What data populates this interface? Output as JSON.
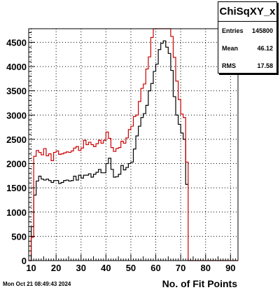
{
  "timestamp": "Mon Oct 21 08:49:43 2024",
  "stats": {
    "title": "ChiSqXY_x",
    "rows": [
      {
        "label": "Entries",
        "value": "145800"
      },
      {
        "label": "Mean",
        "value": "46.12"
      },
      {
        "label": "RMS",
        "value": "17.58"
      }
    ]
  },
  "chart_data": {
    "type": "histogram",
    "xlabel": "No. of Fit Points",
    "ylabel": "",
    "xlim": [
      9,
      93
    ],
    "ylim": [
      0,
      4780
    ],
    "xticks": [
      10,
      20,
      30,
      40,
      50,
      60,
      70,
      80,
      90
    ],
    "yticks": [
      0,
      500,
      1000,
      1500,
      2000,
      2500,
      3000,
      3500,
      4000,
      4500
    ],
    "grid": true,
    "bin_width": 1,
    "series": [
      {
        "color": "#000000",
        "bin_low_edges": [
          9,
          10,
          11,
          12,
          13,
          14,
          15,
          16,
          17,
          18,
          19,
          20,
          21,
          22,
          23,
          24,
          25,
          26,
          27,
          28,
          29,
          30,
          31,
          32,
          33,
          34,
          35,
          36,
          37,
          38,
          39,
          40,
          41,
          42,
          43,
          44,
          45,
          46,
          47,
          48,
          49,
          50,
          51,
          52,
          53,
          54,
          55,
          56,
          57,
          58,
          59,
          60,
          61,
          62,
          63,
          64,
          65,
          66,
          67,
          68,
          69,
          70,
          71,
          72
        ],
        "values": [
          0,
          700,
          1350,
          1640,
          1740,
          1680,
          1660,
          1680,
          1650,
          1610,
          1650,
          1650,
          1590,
          1610,
          1650,
          1660,
          1640,
          1650,
          1740,
          1660,
          1760,
          1700,
          1760,
          1760,
          1790,
          1720,
          1780,
          1820,
          1880,
          1810,
          1810,
          2000,
          2110,
          1880,
          1720,
          1730,
          1780,
          1960,
          1870,
          1920,
          2000,
          2030,
          2300,
          2570,
          2770,
          2950,
          3030,
          3200,
          3500,
          3650,
          3900,
          4050,
          4350,
          4480,
          4530,
          4400,
          4270,
          3920,
          3380,
          3000,
          2810,
          2630,
          2500,
          1570
        ]
      },
      {
        "color": "#cc0000",
        "bin_low_edges": [
          9,
          10,
          11,
          12,
          13,
          14,
          15,
          16,
          17,
          18,
          19,
          20,
          21,
          22,
          23,
          24,
          25,
          26,
          27,
          28,
          29,
          30,
          31,
          32,
          33,
          34,
          35,
          36,
          37,
          38,
          39,
          40,
          41,
          42,
          43,
          44,
          45,
          46,
          47,
          48,
          49,
          50,
          51,
          52,
          53,
          54,
          55,
          56,
          57,
          58,
          59,
          60,
          61,
          62,
          63,
          64,
          65,
          66,
          67,
          68,
          69,
          70,
          71,
          72,
          73,
          74,
          75,
          76,
          77,
          78,
          79,
          80,
          81,
          82,
          83,
          84,
          85,
          86,
          87,
          88,
          89,
          90,
          91,
          92
        ],
        "values": [
          0,
          480,
          2150,
          2270,
          2230,
          2180,
          2310,
          2160,
          2200,
          2060,
          2230,
          2260,
          2190,
          2200,
          2220,
          2240,
          2230,
          2260,
          2320,
          2350,
          2270,
          2320,
          2480,
          2390,
          2440,
          2390,
          2350,
          2410,
          2480,
          2420,
          2480,
          2650,
          2520,
          2330,
          2250,
          2310,
          2330,
          2460,
          2420,
          2530,
          2700,
          2770,
          2970,
          3000,
          3280,
          3550,
          3640,
          3950,
          4200,
          4600,
          4780,
          4780,
          4780,
          4780,
          4780,
          4780,
          4780,
          4620,
          4190,
          3700,
          3320,
          3020,
          2950,
          2030,
          0,
          0,
          0,
          0,
          0,
          0,
          0,
          0,
          0,
          0,
          0,
          0,
          0,
          0,
          0,
          0,
          0,
          0,
          0,
          0
        ]
      }
    ]
  }
}
